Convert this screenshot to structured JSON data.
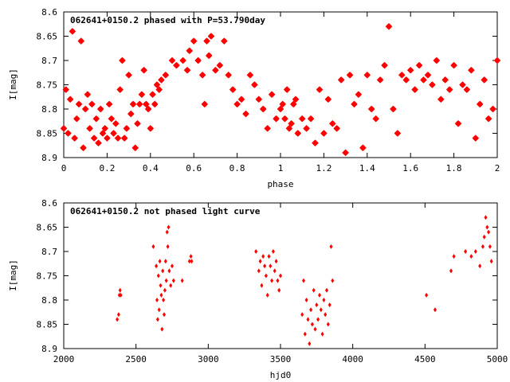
{
  "chart_data": [
    {
      "type": "scatter",
      "title": "062641+0150.2 phased with P=53.790day",
      "xlabel": "phase",
      "ylabel": "I[mag]",
      "xlim": [
        0,
        2
      ],
      "ylim": [
        8.6,
        8.9
      ],
      "y_inverted": true,
      "x_ticks": [
        0,
        0.2,
        0.4,
        0.6,
        0.8,
        1,
        1.2,
        1.4,
        1.6,
        1.8,
        2
      ],
      "x_tick_labels": [
        "0",
        "0.2",
        "0.4",
        "0.6",
        "0.8",
        "1",
        "1.2",
        "1.4",
        "1.6",
        "1.8",
        "2"
      ],
      "y_ticks": [
        8.6,
        8.65,
        8.7,
        8.75,
        8.8,
        8.85,
        8.9
      ],
      "y_tick_labels": [
        "8.6",
        "8.65",
        "8.7",
        "8.75",
        "8.8",
        "8.85",
        "8.9"
      ],
      "grid": false,
      "marker_color": "#ff0000",
      "series": [
        {
          "x": [
            0.0,
            0.01,
            0.02,
            0.03,
            0.04,
            0.05,
            0.06,
            0.07,
            0.08,
            0.09,
            0.1,
            0.11,
            0.12,
            0.13,
            0.14,
            0.15,
            0.16,
            0.17,
            0.18,
            0.19,
            0.2,
            0.21,
            0.22,
            0.23,
            0.24,
            0.25,
            0.26,
            0.27,
            0.28,
            0.29,
            0.3,
            0.31,
            0.32,
            0.33,
            0.34,
            0.35,
            0.36,
            0.37,
            0.38,
            0.39,
            0.4,
            0.41,
            0.42,
            0.43,
            0.44,
            0.45,
            0.47,
            0.5,
            0.52,
            0.55,
            0.57,
            0.58,
            0.6,
            0.62,
            0.64,
            0.65,
            0.66,
            0.67,
            0.68,
            0.7,
            0.72,
            0.74,
            0.76,
            0.78,
            0.8,
            0.82,
            0.84,
            0.86,
            0.88,
            0.9,
            0.92,
            0.94,
            0.96,
            0.98,
            1.0,
            1.01,
            1.02,
            1.03,
            1.04,
            1.05,
            1.06,
            1.07,
            1.08,
            1.1,
            1.12,
            1.14,
            1.16,
            1.18,
            1.2,
            1.22,
            1.24,
            1.26,
            1.28,
            1.3,
            1.32,
            1.34,
            1.36,
            1.38,
            1.4,
            1.42,
            1.44,
            1.46,
            1.48,
            1.5,
            1.52,
            1.54,
            1.56,
            1.58,
            1.6,
            1.62,
            1.64,
            1.66,
            1.68,
            1.7,
            1.72,
            1.74,
            1.76,
            1.78,
            1.8,
            1.82,
            1.84,
            1.86,
            1.88,
            1.9,
            1.92,
            1.94,
            1.96,
            1.98,
            2.0
          ],
          "y": [
            8.84,
            8.76,
            8.85,
            8.78,
            8.64,
            8.86,
            8.82,
            8.79,
            8.66,
            8.88,
            8.8,
            8.77,
            8.84,
            8.79,
            8.86,
            8.82,
            8.87,
            8.8,
            8.85,
            8.84,
            8.86,
            8.79,
            8.82,
            8.85,
            8.83,
            8.86,
            8.76,
            8.7,
            8.86,
            8.84,
            8.73,
            8.81,
            8.79,
            8.88,
            8.83,
            8.79,
            8.77,
            8.72,
            8.79,
            8.8,
            8.84,
            8.77,
            8.79,
            8.75,
            8.76,
            8.74,
            8.73,
            8.7,
            8.71,
            8.7,
            8.72,
            8.68,
            8.66,
            8.7,
            8.73,
            8.79,
            8.66,
            8.69,
            8.65,
            8.72,
            8.71,
            8.66,
            8.73,
            8.76,
            8.79,
            8.78,
            8.81,
            8.73,
            8.75,
            8.78,
            8.8,
            8.84,
            8.77,
            8.82,
            8.8,
            8.79,
            8.82,
            8.76,
            8.84,
            8.83,
            8.79,
            8.78,
            8.85,
            8.82,
            8.84,
            8.82,
            8.87,
            8.76,
            8.85,
            8.78,
            8.83,
            8.84,
            8.74,
            8.89,
            8.73,
            8.79,
            8.77,
            8.88,
            8.73,
            8.8,
            8.82,
            8.74,
            8.71,
            8.63,
            8.8,
            8.85,
            8.73,
            8.74,
            8.72,
            8.76,
            8.71,
            8.74,
            8.73,
            8.75,
            8.7,
            8.78,
            8.74,
            8.76,
            8.71,
            8.83,
            8.75,
            8.76,
            8.72,
            8.86,
            8.79,
            8.74,
            8.82,
            8.8,
            8.7
          ]
        }
      ]
    },
    {
      "type": "scatter",
      "title": "062641+0150.2 not phased light curve",
      "xlabel": "hjd0",
      "ylabel": "I[mag]",
      "xlim": [
        2000,
        5000
      ],
      "ylim": [
        8.6,
        8.9
      ],
      "y_inverted": true,
      "x_ticks": [
        2000,
        2500,
        3000,
        3500,
        4000,
        4500,
        5000
      ],
      "x_tick_labels": [
        "2000",
        "2500",
        "3000",
        "3500",
        "4000",
        "4500",
        "5000"
      ],
      "y_ticks": [
        8.6,
        8.65,
        8.7,
        8.75,
        8.8,
        8.85,
        8.9
      ],
      "y_tick_labels": [
        "8.6",
        "8.65",
        "8.7",
        "8.75",
        "8.8",
        "8.85",
        "8.9"
      ],
      "grid": false,
      "marker_color": "#ff0000",
      "series": [
        {
          "x": [
            2370,
            2380,
            2385,
            2390,
            2395,
            2620,
            2640,
            2645,
            2650,
            2655,
            2660,
            2665,
            2670,
            2675,
            2680,
            2685,
            2690,
            2695,
            2700,
            2705,
            2710,
            2715,
            2720,
            2725,
            2730,
            2740,
            2750,
            2760,
            2820,
            2870,
            2880,
            2885,
            3330,
            3350,
            3360,
            3370,
            3380,
            3390,
            3400,
            3410,
            3420,
            3430,
            3440,
            3450,
            3460,
            3470,
            3480,
            3490,
            3500,
            3650,
            3660,
            3670,
            3680,
            3690,
            3700,
            3710,
            3720,
            3730,
            3740,
            3750,
            3760,
            3770,
            3780,
            3790,
            3800,
            3810,
            3820,
            3830,
            3840,
            3850,
            3860,
            4510,
            4570,
            4680,
            4700,
            4780,
            4820,
            4850,
            4880,
            4900,
            4910,
            4920,
            4930,
            4940,
            4950,
            4960
          ],
          "y": [
            8.84,
            8.83,
            8.79,
            8.78,
            8.79,
            8.69,
            8.73,
            8.8,
            8.84,
            8.75,
            8.82,
            8.72,
            8.77,
            8.79,
            8.86,
            8.74,
            8.8,
            8.83,
            8.78,
            8.72,
            8.76,
            8.66,
            8.69,
            8.65,
            8.74,
            8.77,
            8.73,
            8.76,
            8.76,
            8.72,
            8.71,
            8.72,
            8.7,
            8.74,
            8.72,
            8.77,
            8.71,
            8.73,
            8.75,
            8.79,
            8.71,
            8.73,
            8.76,
            8.7,
            8.74,
            8.72,
            8.76,
            8.78,
            8.75,
            8.83,
            8.76,
            8.87,
            8.8,
            8.84,
            8.89,
            8.82,
            8.85,
            8.78,
            8.86,
            8.81,
            8.84,
            8.79,
            8.82,
            8.87,
            8.8,
            8.83,
            8.78,
            8.85,
            8.81,
            8.69,
            8.76,
            8.79,
            8.82,
            8.74,
            8.71,
            8.7,
            8.71,
            8.7,
            8.73,
            8.69,
            8.67,
            8.63,
            8.65,
            8.66,
            8.69,
            8.72
          ]
        }
      ]
    }
  ]
}
